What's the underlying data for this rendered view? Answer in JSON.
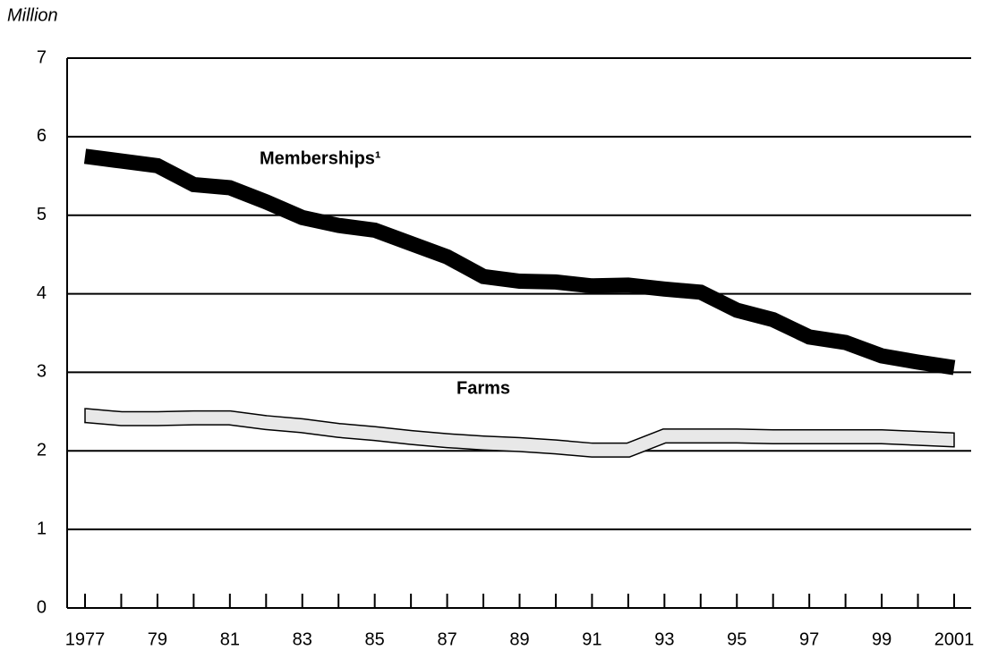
{
  "chart_data": {
    "type": "line",
    "y_label": "Million",
    "x": [
      1977,
      1978,
      1979,
      1980,
      1981,
      1982,
      1983,
      1984,
      1985,
      1986,
      1987,
      1988,
      1989,
      1990,
      1991,
      1992,
      1993,
      1994,
      1995,
      1996,
      1997,
      1998,
      1999,
      2000,
      2001
    ],
    "series": [
      {
        "name": "Memberships¹",
        "color": "#000000",
        "values": [
          5.75,
          5.69,
          5.63,
          5.39,
          5.35,
          5.17,
          4.97,
          4.87,
          4.81,
          4.64,
          4.47,
          4.22,
          4.16,
          4.15,
          4.1,
          4.11,
          4.06,
          4.02,
          3.79,
          3.67,
          3.45,
          3.38,
          3.21,
          3.13,
          3.06
        ]
      },
      {
        "name": "Farms",
        "color": "#e8e8e8",
        "values": [
          2.45,
          2.41,
          2.41,
          2.42,
          2.42,
          2.36,
          2.32,
          2.26,
          2.22,
          2.17,
          2.13,
          2.1,
          2.08,
          2.05,
          2.01,
          2.01,
          2.19,
          2.19,
          2.19,
          2.18,
          2.18,
          2.18,
          2.18,
          2.16,
          2.14
        ]
      }
    ],
    "xlim": [
      1977,
      2001
    ],
    "ylim": [
      0,
      7
    ],
    "xticks": [
      1977,
      {
        "value": 1979,
        "label": "79"
      },
      {
        "value": 1981,
        "label": "81"
      },
      {
        "value": 1983,
        "label": "83"
      },
      {
        "value": 1985,
        "label": "85"
      },
      {
        "value": 1987,
        "label": "87"
      },
      {
        "value": 1989,
        "label": "89"
      },
      {
        "value": 1991,
        "label": "91"
      },
      {
        "value": 1993,
        "label": "93"
      },
      {
        "value": 1995,
        "label": "95"
      },
      {
        "value": 1997,
        "label": "97"
      },
      {
        "value": 1999,
        "label": "99"
      },
      2001
    ],
    "yticks": [
      0,
      1,
      2,
      3,
      4,
      5,
      6,
      7
    ],
    "grid": true
  }
}
